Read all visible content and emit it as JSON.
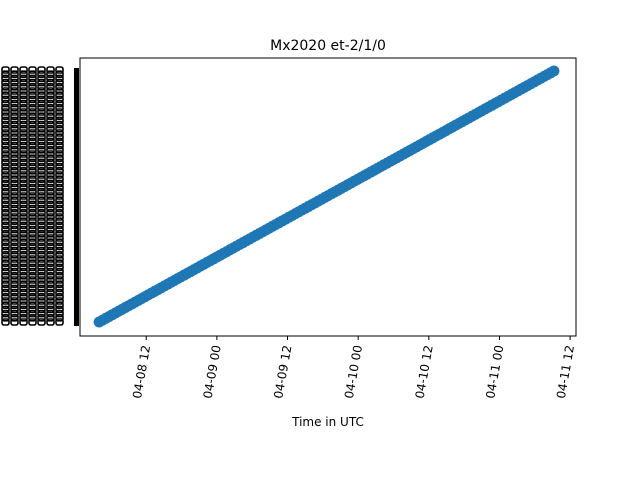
{
  "chart_data": {
    "type": "scatter",
    "title": "Mx2020 et-2/1/0",
    "xlabel": "Time in UTC",
    "ylabel": "",
    "x_ticks": [
      {
        "x": "2020-04-08T12:00",
        "label": "04-08 12"
      },
      {
        "x": "2020-04-09T00:00",
        "label": "04-09 00"
      },
      {
        "x": "2020-04-09T12:00",
        "label": "04-09 12"
      },
      {
        "x": "2020-04-10T00:00",
        "label": "04-10 00"
      },
      {
        "x": "2020-04-10T12:00",
        "label": "04-10 12"
      },
      {
        "x": "2020-04-11T00:00",
        "label": "04-11 00"
      },
      {
        "x": "2020-04-11T12:00",
        "label": "04-11 12"
      }
    ],
    "x_range": [
      "2020-04-08T00:45",
      "2020-04-11T13:00"
    ],
    "series": [
      {
        "color": "#1f77b4",
        "x_start": "2020-04-08T04:00",
        "x_end": "2020-04-11T09:15",
        "trend": "linear-increasing"
      }
    ],
    "y_ticks_note": "dense overlapping black tick labels (illegible)",
    "grid": false,
    "legend": "none"
  }
}
